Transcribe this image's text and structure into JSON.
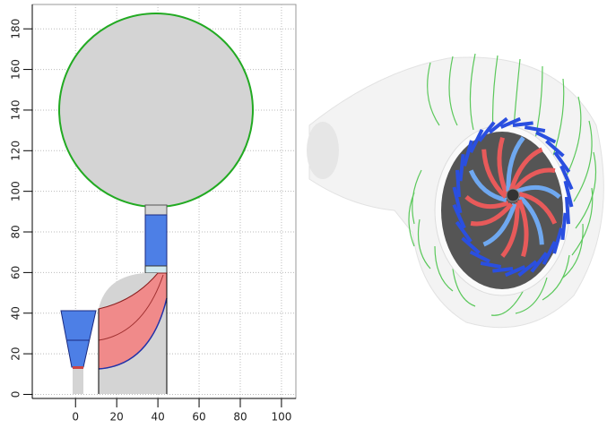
{
  "axes": {
    "xlim": [
      -21,
      107
    ],
    "ylim": [
      -2,
      192
    ],
    "xticks": [
      0,
      20,
      40,
      60,
      80,
      100
    ],
    "yticks": [
      0,
      20,
      40,
      60,
      80,
      100,
      120,
      140,
      160,
      180
    ],
    "grid": true
  }
}
